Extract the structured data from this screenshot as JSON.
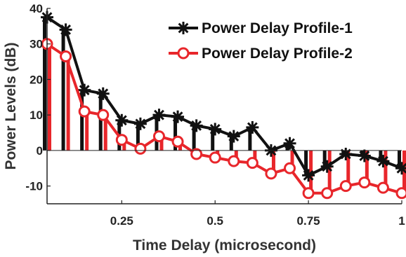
{
  "chart_data": {
    "type": "line",
    "xlabel": "Time Delay (microsecond)",
    "ylabel": "Power Levels (dB)",
    "xlim": [
      0.05,
      1.0
    ],
    "ylim": [
      -15,
      40
    ],
    "x_ticks": [
      0.25,
      0.5,
      0.75,
      1
    ],
    "x_tick_labels": [
      "0.25",
      "0.5",
      "0.75",
      "1"
    ],
    "y_ticks": [
      -10,
      0,
      10,
      20,
      30,
      40
    ],
    "y_tick_labels": [
      "-10",
      "0",
      "10",
      "20",
      "30",
      "40"
    ],
    "grid": false,
    "legend_position": "top-right",
    "x": [
      0.05,
      0.1,
      0.15,
      0.2,
      0.25,
      0.3,
      0.35,
      0.4,
      0.45,
      0.5,
      0.55,
      0.6,
      0.65,
      0.7,
      0.75,
      0.8,
      0.85,
      0.9,
      0.95,
      1.0
    ],
    "series": [
      {
        "name": "Power Delay Profile-1",
        "color": "#111111",
        "marker": "asterisk",
        "values": [
          37.5,
          34,
          17,
          16,
          8.5,
          7.5,
          10,
          9.5,
          7,
          6,
          4,
          6.5,
          0,
          2,
          -7,
          -4.5,
          -1,
          -1.5,
          -3,
          -5
        ]
      },
      {
        "name": "Power Delay Profile-2",
        "color": "#e8262b",
        "marker": "circle",
        "values": [
          30,
          26.5,
          11,
          10,
          3,
          0.5,
          4,
          2.5,
          -1,
          -2,
          -3,
          -3.5,
          -6.5,
          -5,
          -12,
          -12,
          -10,
          -9,
          -10.5,
          -12
        ]
      }
    ]
  }
}
